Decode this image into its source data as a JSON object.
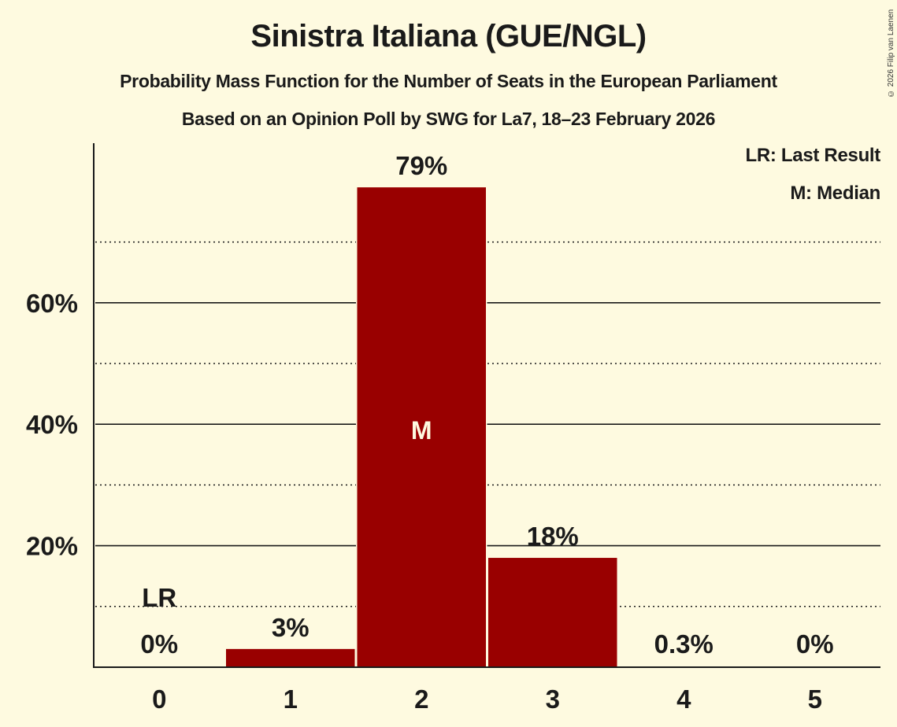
{
  "header": {
    "title": "Sinistra Italiana (GUE/NGL)",
    "subtitle": "Probability Mass Function for the Number of Seats in the European Parliament",
    "subtitle2": "Based on an Opinion Poll by SWG for La7, 18–23 February 2026",
    "copyright": "© 2026 Filip van Laenen"
  },
  "legend": {
    "lr": "LR: Last Result",
    "m": "M: Median"
  },
  "colors": {
    "background": "#fefae0",
    "bar": "#990000",
    "text": "#1a1a1a",
    "median_label": "#fefae0"
  },
  "chart_data": {
    "type": "bar",
    "title": "Sinistra Italiana (GUE/NGL)",
    "subtitle": "Probability Mass Function for the Number of Seats in the European Parliament; Based on an Opinion Poll by SWG for La7, 18–23 February 2026",
    "xlabel": "",
    "ylabel": "",
    "categories": [
      "0",
      "1",
      "2",
      "3",
      "4",
      "5"
    ],
    "values": [
      0,
      3,
      79,
      18,
      0.3,
      0
    ],
    "value_labels": [
      "0%",
      "3%",
      "79%",
      "18%",
      "0.3%",
      "0%"
    ],
    "yticks": [
      20,
      40,
      60
    ],
    "ytick_labels": [
      "20%",
      "40%",
      "60%"
    ],
    "minor_gridlines": [
      10,
      30,
      50,
      70
    ],
    "ylim": [
      0,
      86
    ],
    "grid": true,
    "legend_position": "top-right",
    "annotations": [
      {
        "category": "0",
        "label": "LR",
        "meaning": "Last Result"
      },
      {
        "category": "2",
        "label": "M",
        "meaning": "Median"
      }
    ]
  }
}
